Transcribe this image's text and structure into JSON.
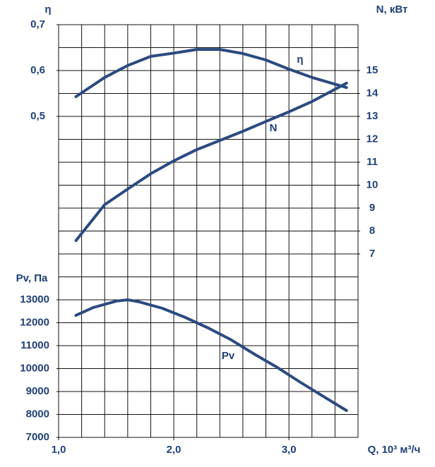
{
  "chart_data": {
    "type": "line",
    "x_label": "Q, 10³ м³/ч",
    "xlim": [
      1.0,
      3.6
    ],
    "xticks": [
      {
        "value": 1.0,
        "label": "1,0"
      },
      {
        "value": 2.0,
        "label": "2,0"
      },
      {
        "value": 3.0,
        "label": "3,0"
      }
    ],
    "ylabel": "Pv, Па",
    "ylim": [
      7000,
      25000
    ],
    "yticks": [
      7000,
      8000,
      9000,
      10000,
      11000,
      12000,
      13000
    ],
    "y2label": "N, кВт",
    "y2lim": [
      -1,
      17
    ],
    "y2ticks": [
      7,
      8,
      9,
      10,
      11,
      12,
      13,
      14,
      15
    ],
    "y3label": "η",
    "y3lim": [
      -0.2,
      0.7
    ],
    "y3ticks": [
      {
        "value": 0.5,
        "label": "0,5"
      },
      {
        "value": 0.6,
        "label": "0,6"
      },
      {
        "value": 0.7,
        "label": "0,7"
      }
    ],
    "grid": true,
    "series": [
      {
        "name": "η",
        "color": "#2b4a80",
        "axis": "y3",
        "x": [
          1.15,
          1.4,
          1.6,
          1.8,
          2.0,
          2.2,
          2.4,
          2.6,
          2.8,
          3.0,
          3.2,
          3.5
        ],
        "values": [
          0.543,
          0.585,
          0.611,
          0.631,
          0.638,
          0.646,
          0.646,
          0.637,
          0.623,
          0.603,
          0.585,
          0.563
        ]
      },
      {
        "name": "N",
        "color": "#2b4a80",
        "axis": "y2",
        "x": [
          1.15,
          1.4,
          1.6,
          1.8,
          2.0,
          2.2,
          2.4,
          2.6,
          2.8,
          3.0,
          3.2,
          3.5
        ],
        "values": [
          7.58,
          9.15,
          9.83,
          10.5,
          11.06,
          11.55,
          11.95,
          12.35,
          12.78,
          13.2,
          13.65,
          14.45
        ]
      },
      {
        "name": "Pv",
        "color": "#2b4a80",
        "axis": "y",
        "x": [
          1.15,
          1.3,
          1.5,
          1.6,
          1.7,
          1.9,
          2.1,
          2.3,
          2.5,
          2.7,
          2.9,
          3.1,
          3.3,
          3.5
        ],
        "values": [
          12323,
          12660,
          12940,
          13000,
          12910,
          12630,
          12230,
          11770,
          11250,
          10630,
          10050,
          9400,
          8780,
          8170
        ]
      }
    ]
  }
}
